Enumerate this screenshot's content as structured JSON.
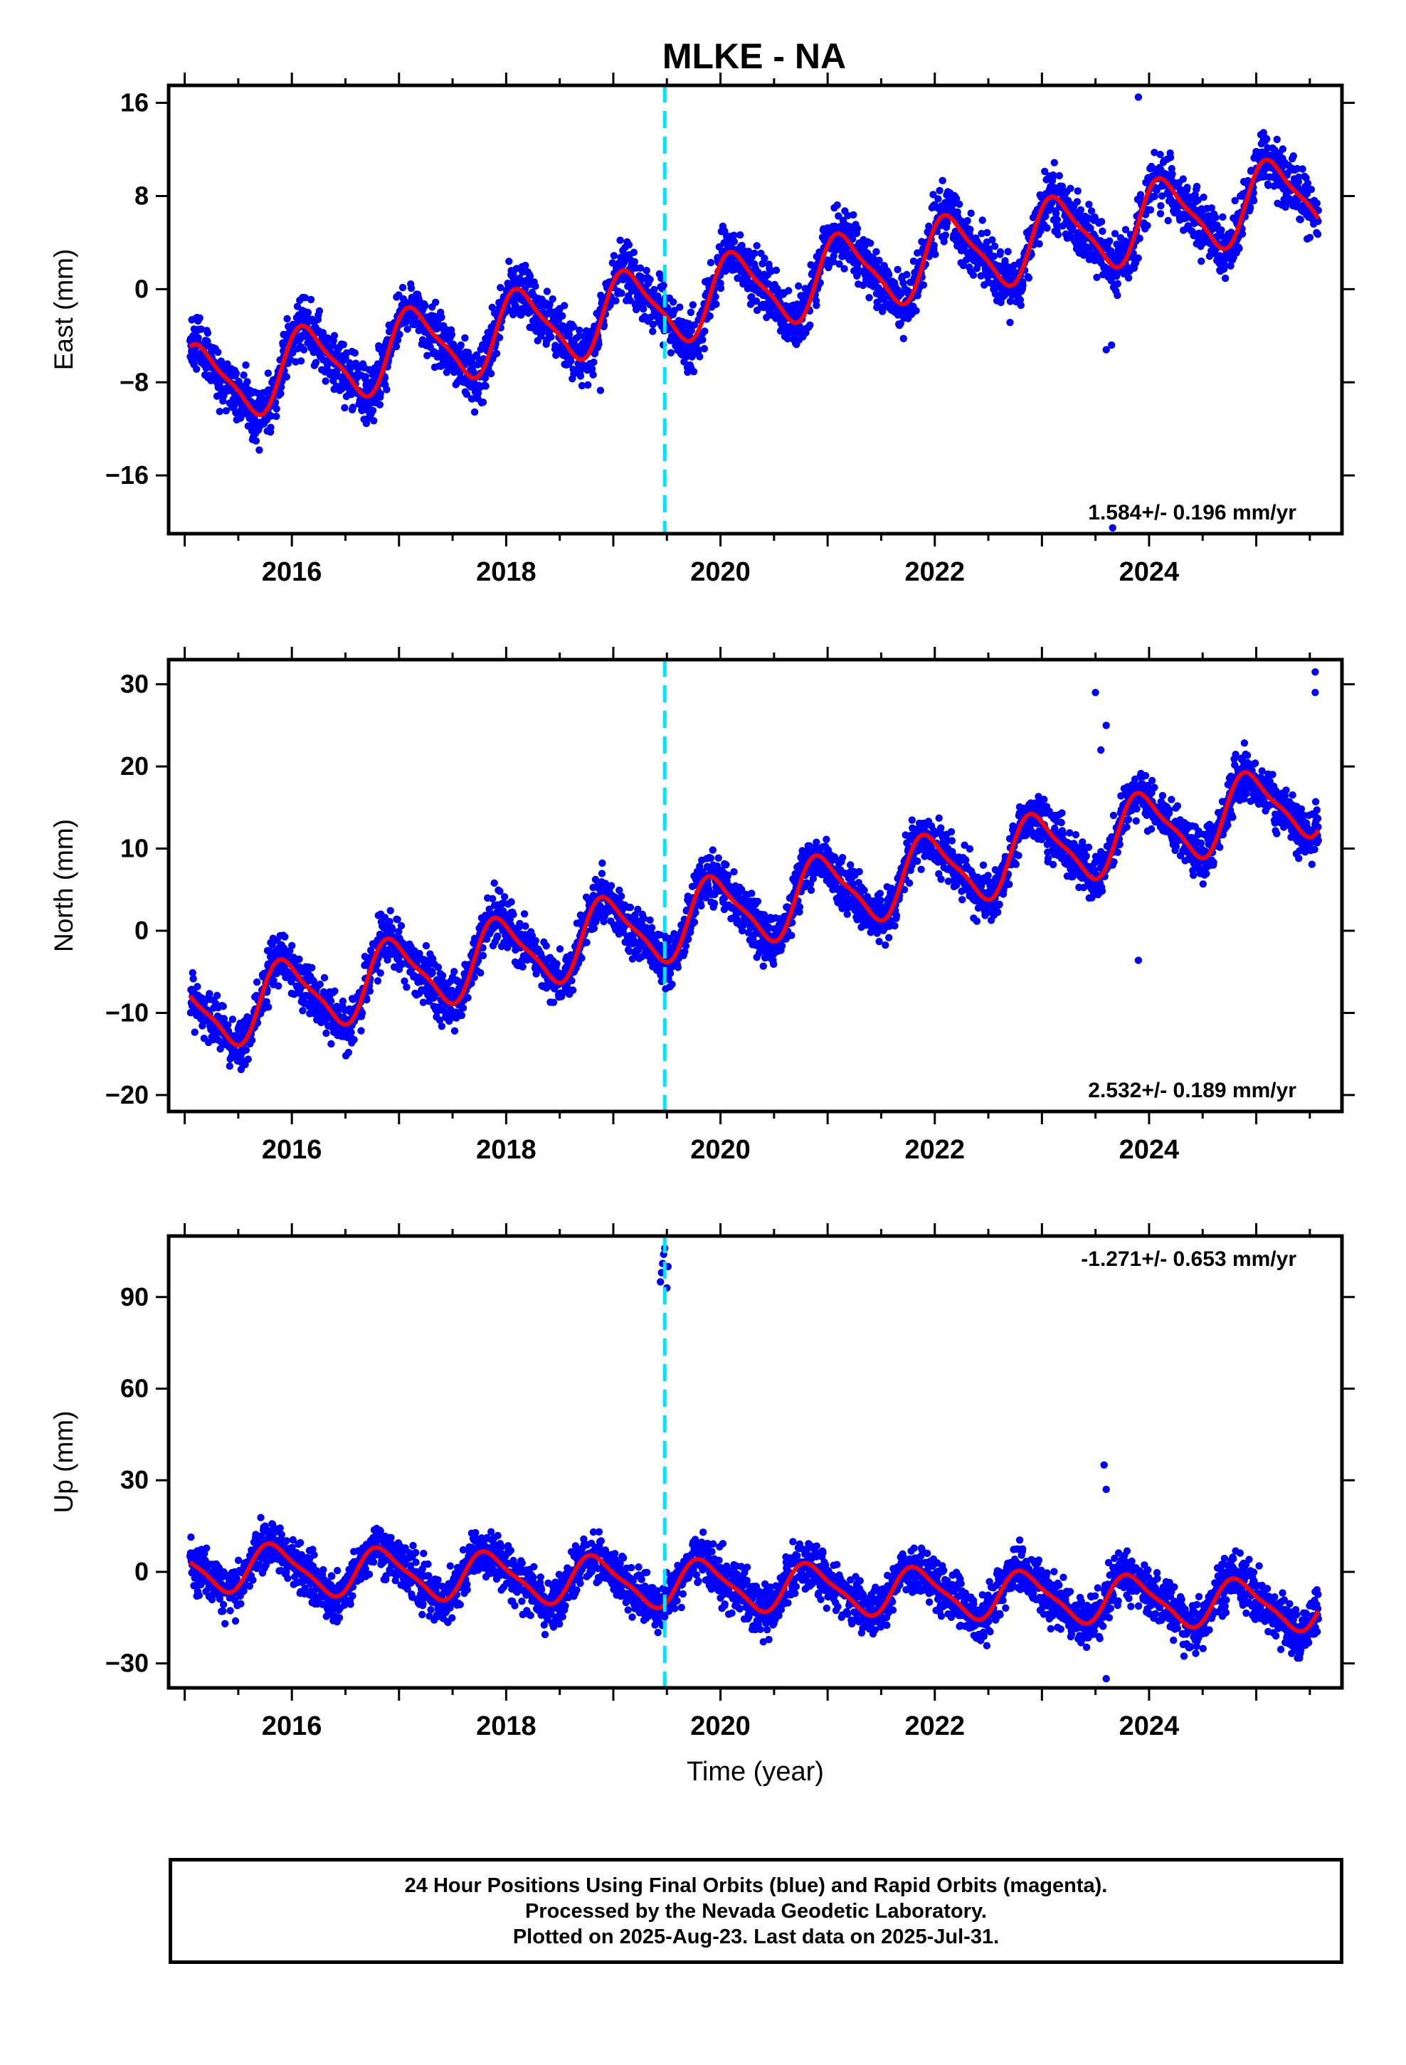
{
  "title": "MLKE - NA",
  "colors": {
    "points": "#0000ff",
    "fit": "#ff0000",
    "offset_line": "#00e5ff",
    "frame": "#000000"
  },
  "chart_data": [
    {
      "type": "scatter",
      "name": "east",
      "ylabel": "East (mm)",
      "xlabel": "",
      "ylim": [
        -21,
        17.5
      ],
      "yticks": [
        -16,
        -8,
        0,
        8,
        16
      ],
      "xlim": [
        2014.85,
        2025.8
      ],
      "xticks": [
        2016,
        2018,
        2020,
        2022,
        2024
      ],
      "trend": {
        "start": -8.4,
        "rate": 1.584,
        "amplitude": 3.2,
        "phase": 0.1,
        "noise": 1.2,
        "seed": 11
      },
      "offset_epoch": 2019.48,
      "rate_label": "1.584+/- 0.196 mm/yr",
      "rate_position": "bottom-right",
      "outliers": [
        [
          2018.88,
          -8.7
        ],
        [
          2023.6,
          -5.2
        ],
        [
          2023.65,
          -4.8
        ],
        [
          2023.9,
          16.5
        ],
        [
          2023.66,
          -20.5
        ]
      ]
    },
    {
      "type": "scatter",
      "name": "north",
      "ylabel": "North (mm)",
      "xlabel": "",
      "ylim": [
        -22,
        33
      ],
      "yticks": [
        -20,
        -10,
        0,
        10,
        20,
        30
      ],
      "xlim": [
        2014.85,
        2025.8
      ],
      "xticks": [
        2016,
        2018,
        2020,
        2022,
        2024
      ],
      "trend": {
        "start": -10.5,
        "rate": 2.532,
        "amplitude": 4.3,
        "phase": 0.3,
        "noise": 1.5,
        "seed": 23
      },
      "offset_epoch": 2019.48,
      "rate_label": "2.532+/- 0.189 mm/yr",
      "rate_position": "bottom-right",
      "outliers": [
        [
          2023.5,
          29
        ],
        [
          2023.6,
          25
        ],
        [
          2023.55,
          22
        ],
        [
          2023.9,
          -3.6
        ],
        [
          2025.55,
          31.5
        ],
        [
          2025.55,
          29
        ]
      ]
    },
    {
      "type": "scatter",
      "name": "up",
      "ylabel": "Up (mm)",
      "xlabel": "Time (year)",
      "ylim": [
        -38,
        110
      ],
      "yticks": [
        -30,
        0,
        30,
        60,
        90
      ],
      "xlim": [
        2014.85,
        2025.8
      ],
      "xticks": [
        2016,
        2018,
        2020,
        2022,
        2024
      ],
      "trend": {
        "start": 2,
        "rate": -1.271,
        "amplitude": 7.5,
        "phase": 0.4,
        "noise": 4.0,
        "seed": 37
      },
      "offset_epoch": 2019.48,
      "rate_label": "-1.271+/- 0.653 mm/yr",
      "rate_position": "top-right",
      "outliers": [
        [
          2019.44,
          95
        ],
        [
          2019.45,
          98
        ],
        [
          2019.46,
          101
        ],
        [
          2019.47,
          104
        ],
        [
          2019.48,
          106
        ],
        [
          2019.5,
          93
        ],
        [
          2019.51,
          100
        ],
        [
          2023.58,
          35
        ],
        [
          2023.6,
          27
        ],
        [
          2023.6,
          -35
        ]
      ]
    }
  ],
  "footer": {
    "line1": "24 Hour Positions Using Final Orbits (blue) and Rapid Orbits (magenta).",
    "line2": "Processed by the Nevada Geodetic Laboratory.",
    "line3": "Plotted on 2025-Aug-23. Last data on 2025-Jul-31."
  }
}
